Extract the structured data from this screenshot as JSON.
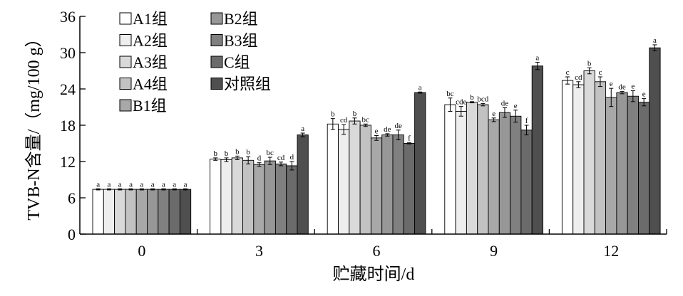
{
  "chart_data": {
    "type": "bar",
    "xlabel": "贮藏时间/d",
    "ylabel": "TVB-N含量/（mg/100 g）",
    "ylim": [
      0,
      36
    ],
    "yticks": [
      0,
      6,
      12,
      18,
      24,
      30,
      36
    ],
    "categories": [
      "0",
      "3",
      "6",
      "9",
      "12"
    ],
    "legend_position": "top-left",
    "grid": false,
    "series": [
      {
        "name": "A1组",
        "color": "#ffffff",
        "values": [
          7.4,
          12.4,
          18.2,
          21.4,
          25.4
        ],
        "errors": [
          0.1,
          0.2,
          0.9,
          1.1,
          0.6
        ],
        "letters": [
          "a",
          "b",
          "b",
          "bc",
          "c"
        ]
      },
      {
        "name": "A2组",
        "color": "#eeeeee",
        "values": [
          7.4,
          12.3,
          17.3,
          20.3,
          24.7
        ],
        "errors": [
          0.1,
          0.3,
          0.8,
          0.8,
          0.5
        ],
        "letters": [
          "a",
          "b",
          "cd",
          "cde",
          "cd"
        ]
      },
      {
        "name": "A3组",
        "color": "#d9d9d9",
        "values": [
          7.4,
          12.6,
          18.7,
          21.8,
          27.0
        ],
        "errors": [
          0.1,
          0.3,
          0.5,
          0.1,
          0.5
        ],
        "letters": [
          "a",
          "b",
          "b",
          "b",
          "b"
        ]
      },
      {
        "name": "A4组",
        "color": "#c2c2c2",
        "values": [
          7.4,
          12.2,
          18.0,
          21.4,
          25.2
        ],
        "errors": [
          0.1,
          0.6,
          0.2,
          0.2,
          0.8
        ],
        "letters": [
          "a",
          "b",
          "bc",
          "bcd",
          "c"
        ]
      },
      {
        "name": "B1组",
        "color": "#a8a8a8",
        "values": [
          7.4,
          11.5,
          15.9,
          18.9,
          22.6
        ],
        "errors": [
          0.1,
          0.3,
          0.4,
          0.3,
          1.5
        ],
        "letters": [
          "a",
          "d",
          "e",
          "e",
          "e"
        ]
      },
      {
        "name": "B2组",
        "color": "#979797",
        "values": [
          7.4,
          12.1,
          16.4,
          20.1,
          23.4
        ],
        "errors": [
          0.1,
          0.6,
          0.2,
          0.8,
          0.2
        ],
        "letters": [
          "a",
          "bc",
          "de",
          "de",
          "de"
        ]
      },
      {
        "name": "B3组",
        "color": "#808080",
        "values": [
          7.4,
          11.6,
          16.4,
          19.5,
          22.8
        ],
        "errors": [
          0.1,
          0.3,
          0.8,
          1.0,
          0.9
        ],
        "letters": [
          "a",
          "cd",
          "de",
          "e",
          "e"
        ]
      },
      {
        "name": "C组",
        "color": "#6b6b6b",
        "values": [
          7.4,
          11.3,
          15.0,
          17.2,
          21.8
        ],
        "errors": [
          0.1,
          0.7,
          0.1,
          0.8,
          0.6
        ],
        "letters": [
          "a",
          "d",
          "f",
          "f",
          "e"
        ]
      },
      {
        "name": "对照组",
        "color": "#4f4f4f",
        "values": [
          7.4,
          16.4,
          23.4,
          27.8,
          30.8
        ],
        "errors": [
          0.1,
          0.3,
          0.1,
          0.6,
          0.5
        ],
        "letters": [
          "a",
          "a",
          "a",
          "a",
          "a"
        ]
      }
    ]
  }
}
